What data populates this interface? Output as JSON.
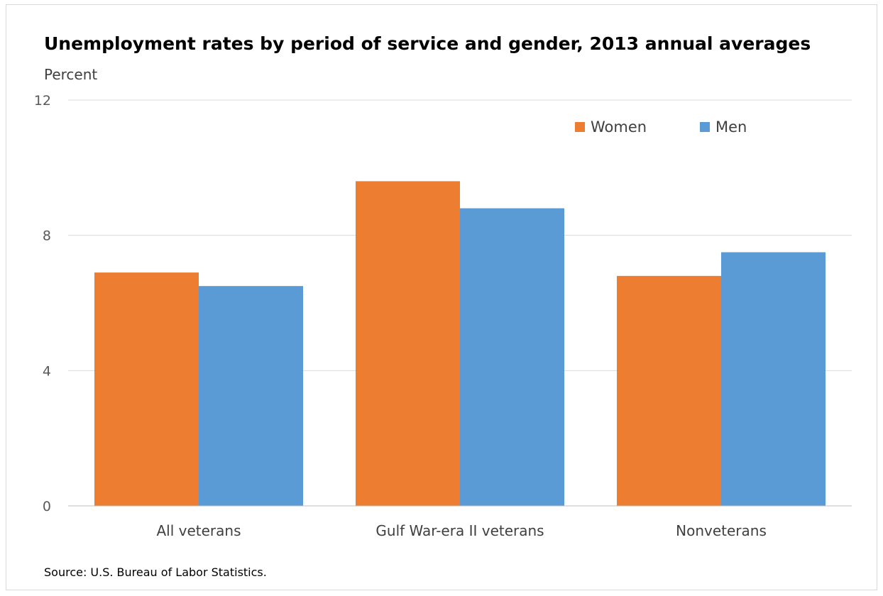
{
  "chart_data": {
    "type": "bar",
    "title": "Unemployment rates by period of service and gender, 2013 annual averages",
    "ylabel": "Percent",
    "xlabel": "",
    "categories": [
      "All veterans",
      "Gulf War-era II veterans",
      "Nonveterans"
    ],
    "series": [
      {
        "name": "Women",
        "values": [
          6.9,
          9.6,
          6.8
        ],
        "color": "#ed7d31"
      },
      {
        "name": "Men",
        "values": [
          6.5,
          8.8,
          7.5
        ],
        "color": "#5b9bd5"
      }
    ],
    "ylim": [
      0,
      12
    ],
    "yticks": [
      "0",
      "4",
      "8",
      "12"
    ],
    "grid": true,
    "legend": "top-right",
    "source": "Source: U.S. Bureau of Labor Statistics."
  }
}
